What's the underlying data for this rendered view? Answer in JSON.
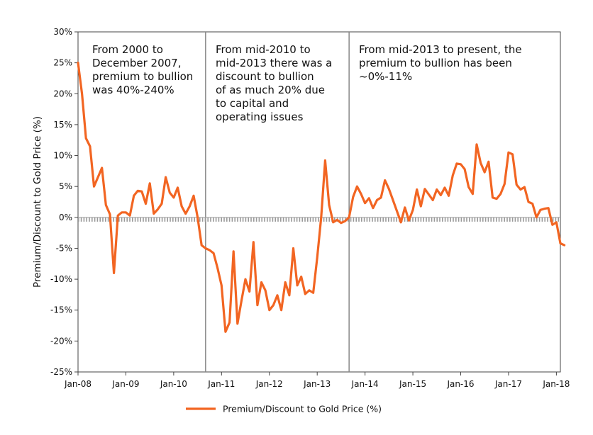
{
  "chart_data": {
    "type": "line",
    "ylabel": "Premium/Discount to Gold Price (%)",
    "xlabel": "",
    "ylim": [
      -25,
      30
    ],
    "y_ticks": [
      -25,
      -20,
      -15,
      -10,
      -5,
      0,
      5,
      10,
      15,
      20,
      25,
      30
    ],
    "y_tick_labels": [
      "-25%",
      "-20%",
      "-15%",
      "-10%",
      "-5%",
      "0%",
      "5%",
      "10%",
      "15%",
      "20%",
      "25%",
      "30%"
    ],
    "x_ticks": [
      "2008-01",
      "2009-01",
      "2010-01",
      "2011-01",
      "2012-01",
      "2013-01",
      "2014-01",
      "2015-01",
      "2016-01",
      "2017-01",
      "2018-01"
    ],
    "x_tick_labels": [
      "Jan-08",
      "Jan-09",
      "Jan-10",
      "Jan-11",
      "Jan-12",
      "Jan-13",
      "Jan-14",
      "Jan-15",
      "Jan-16",
      "Jan-17",
      "Jan-18"
    ],
    "x_range": [
      "2008-01",
      "2018-02"
    ],
    "grid": false,
    "legend_position": "bottom-center",
    "colors": {
      "series": "#f26522",
      "axis": "#9a9a9a",
      "divider": "#888888",
      "frame": "#444444"
    },
    "dividers": [
      "2010-09",
      "2013-09"
    ],
    "annotations": [
      {
        "lines": [
          "From 2000 to",
          "December 2007,",
          "premium to bullion",
          "was 40%-240%"
        ]
      },
      {
        "lines": [
          "From mid-2010 to",
          "mid-2013 there was a",
          "discount to bullion",
          "of as much 20% due",
          "to capital and",
          "operating issues"
        ]
      },
      {
        "lines": [
          "From mid-2013 to present, the",
          "premium to bullion has been",
          "~0%-11%"
        ]
      }
    ],
    "series": [
      {
        "name": "Premium/Discount to Gold Price (%)",
        "points": [
          [
            "2008-01",
            25
          ],
          [
            "2008-02",
            20
          ],
          [
            "2008-03",
            12.8
          ],
          [
            "2008-04",
            11.5
          ],
          [
            "2008-05",
            5
          ],
          [
            "2008-06",
            6.5
          ],
          [
            "2008-07",
            8
          ],
          [
            "2008-08",
            2
          ],
          [
            "2008-09",
            0.5
          ],
          [
            "2008-10",
            -9
          ],
          [
            "2008-11",
            0.3
          ],
          [
            "2008-12",
            0.8
          ],
          [
            "2009-01",
            0.8
          ],
          [
            "2009-02",
            0.3
          ],
          [
            "2009-03",
            3.5
          ],
          [
            "2009-04",
            4.3
          ],
          [
            "2009-05",
            4.2
          ],
          [
            "2009-06",
            2.2
          ],
          [
            "2009-07",
            5.5
          ],
          [
            "2009-08",
            0.6
          ],
          [
            "2009-09",
            1.3
          ],
          [
            "2009-10",
            2.2
          ],
          [
            "2009-11",
            6.5
          ],
          [
            "2009-12",
            4
          ],
          [
            "2010-01",
            3.2
          ],
          [
            "2010-02",
            4.8
          ],
          [
            "2010-03",
            1.8
          ],
          [
            "2010-04",
            0.6
          ],
          [
            "2010-05",
            1.8
          ],
          [
            "2010-06",
            3.5
          ],
          [
            "2010-07",
            0
          ],
          [
            "2010-08",
            -4.5
          ],
          [
            "2010-09",
            -5
          ],
          [
            "2010-10",
            -5.3
          ],
          [
            "2010-11",
            -5.8
          ],
          [
            "2010-12",
            -8.2
          ],
          [
            "2011-01",
            -11
          ],
          [
            "2011-02",
            -18.5
          ],
          [
            "2011-03",
            -17
          ],
          [
            "2011-04",
            -5.5
          ],
          [
            "2011-05",
            -17.2
          ],
          [
            "2011-06",
            -13.5
          ],
          [
            "2011-07",
            -10
          ],
          [
            "2011-08",
            -12
          ],
          [
            "2011-09",
            -4
          ],
          [
            "2011-10",
            -14.2
          ],
          [
            "2011-11",
            -10.5
          ],
          [
            "2011-12",
            -11.8
          ],
          [
            "2012-01",
            -15
          ],
          [
            "2012-02",
            -14.2
          ],
          [
            "2012-03",
            -12.6
          ],
          [
            "2012-04",
            -15
          ],
          [
            "2012-05",
            -10.5
          ],
          [
            "2012-06",
            -12.6
          ],
          [
            "2012-07",
            -5
          ],
          [
            "2012-08",
            -11
          ],
          [
            "2012-09",
            -9.6
          ],
          [
            "2012-10",
            -12.4
          ],
          [
            "2012-11",
            -11.8
          ],
          [
            "2012-12",
            -12.2
          ],
          [
            "2013-01",
            -6.5
          ],
          [
            "2013-02",
            0
          ],
          [
            "2013-03",
            9.2
          ],
          [
            "2013-04",
            2
          ],
          [
            "2013-05",
            -0.8
          ],
          [
            "2013-06",
            -0.4
          ],
          [
            "2013-07",
            -0.9
          ],
          [
            "2013-08",
            -0.6
          ],
          [
            "2013-09",
            0
          ],
          [
            "2013-10",
            3.3
          ],
          [
            "2013-11",
            5
          ],
          [
            "2013-12",
            3.8
          ],
          [
            "2014-01",
            2.3
          ],
          [
            "2014-02",
            3.1
          ],
          [
            "2014-03",
            1.5
          ],
          [
            "2014-04",
            2.8
          ],
          [
            "2014-05",
            3.2
          ],
          [
            "2014-06",
            6
          ],
          [
            "2014-07",
            4.6
          ],
          [
            "2014-08",
            2.8
          ],
          [
            "2014-09",
            1
          ],
          [
            "2014-10",
            -0.8
          ],
          [
            "2014-11",
            1.6
          ],
          [
            "2014-12",
            -0.5
          ],
          [
            "2015-01",
            1.2
          ],
          [
            "2015-02",
            4.5
          ],
          [
            "2015-03",
            1.8
          ],
          [
            "2015-04",
            4.6
          ],
          [
            "2015-05",
            3.7
          ],
          [
            "2015-06",
            2.8
          ],
          [
            "2015-07",
            4.5
          ],
          [
            "2015-08",
            3.6
          ],
          [
            "2015-09",
            4.8
          ],
          [
            "2015-10",
            3.5
          ],
          [
            "2015-11",
            6.8
          ],
          [
            "2015-12",
            8.7
          ],
          [
            "2016-01",
            8.6
          ],
          [
            "2016-02",
            7.8
          ],
          [
            "2016-03",
            4.9
          ],
          [
            "2016-04",
            3.8
          ],
          [
            "2016-05",
            11.8
          ],
          [
            "2016-06",
            8.8
          ],
          [
            "2016-07",
            7.3
          ],
          [
            "2016-08",
            9
          ],
          [
            "2016-09",
            3.2
          ],
          [
            "2016-10",
            3
          ],
          [
            "2016-11",
            3.8
          ],
          [
            "2016-12",
            5.4
          ],
          [
            "2017-01",
            10.5
          ],
          [
            "2017-02",
            10.2
          ],
          [
            "2017-03",
            5.3
          ],
          [
            "2017-04",
            4.5
          ],
          [
            "2017-05",
            4.9
          ],
          [
            "2017-06",
            2.5
          ],
          [
            "2017-07",
            2.2
          ],
          [
            "2017-08",
            0
          ],
          [
            "2017-09",
            1.2
          ],
          [
            "2017-10",
            1.4
          ],
          [
            "2017-11",
            1.5
          ],
          [
            "2017-12",
            -1.2
          ],
          [
            "2018-01",
            -0.8
          ],
          [
            "2018-02",
            -4.2
          ],
          [
            "2018-03",
            -4.5
          ]
        ]
      }
    ]
  }
}
